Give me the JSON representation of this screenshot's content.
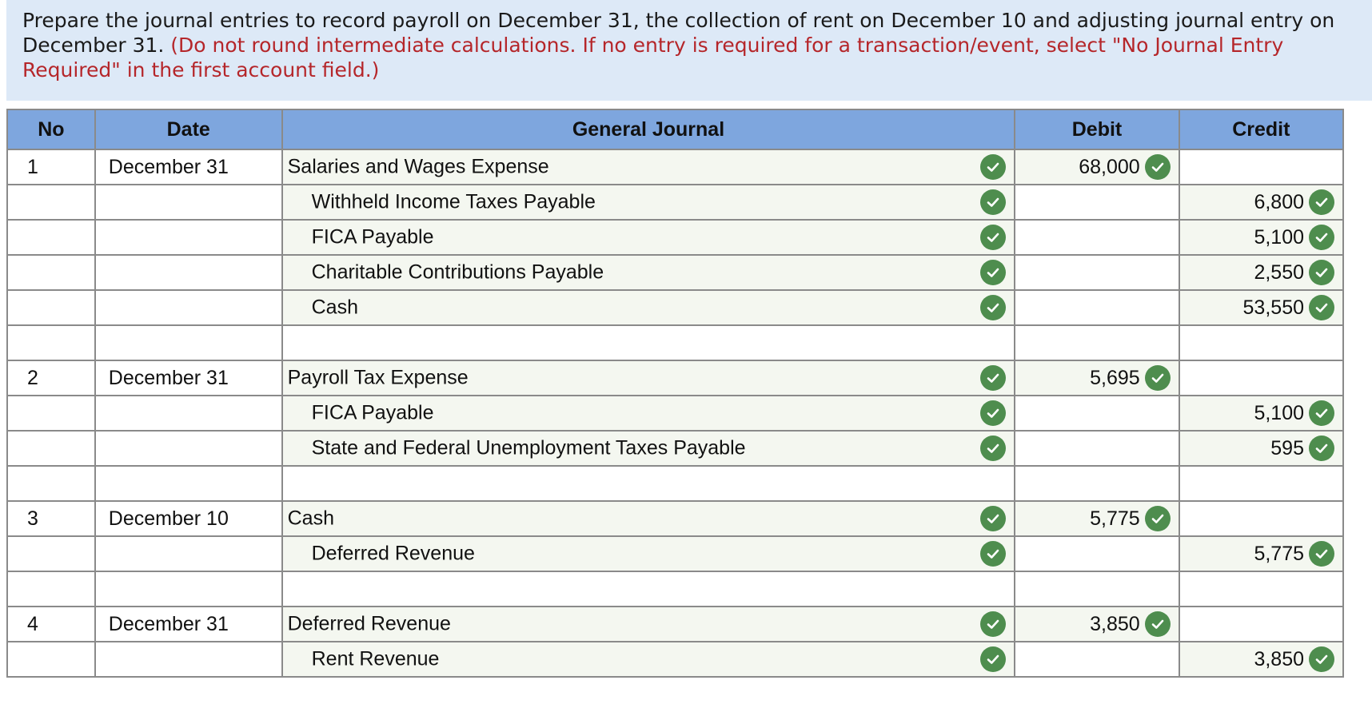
{
  "instructions": {
    "main": "Prepare the journal entries to record payroll on December 31, the collection of rent on December 10 and adjusting journal entry on December 31.",
    "note": "(Do not round intermediate calculations. If no entry is required for a transaction/event, select \"No Journal Entry Required\" in the first account field.)"
  },
  "table": {
    "headers": {
      "no": "No",
      "date": "Date",
      "journal": "General Journal",
      "debit": "Debit",
      "credit": "Credit"
    },
    "rows": [
      {
        "no": "1",
        "date": "December 31",
        "account": "Salaries and Wages Expense",
        "debit": "68,000",
        "credit": ""
      },
      {
        "no": "",
        "date": "",
        "account": "Withheld Income Taxes Payable",
        "debit": "",
        "credit": "6,800"
      },
      {
        "no": "",
        "date": "",
        "account": "FICA Payable",
        "debit": "",
        "credit": "5,100"
      },
      {
        "no": "",
        "date": "",
        "account": "Charitable Contributions Payable",
        "debit": "",
        "credit": "2,550"
      },
      {
        "no": "",
        "date": "",
        "account": "Cash",
        "debit": "",
        "credit": "53,550"
      },
      {
        "no": "",
        "date": "",
        "account": "",
        "debit": "",
        "credit": ""
      },
      {
        "no": "2",
        "date": "December 31",
        "account": "Payroll Tax Expense",
        "debit": "5,695",
        "credit": ""
      },
      {
        "no": "",
        "date": "",
        "account": "FICA Payable",
        "debit": "",
        "credit": "5,100"
      },
      {
        "no": "",
        "date": "",
        "account": "State and Federal Unemployment Taxes Payable",
        "debit": "",
        "credit": "595"
      },
      {
        "no": "",
        "date": "",
        "account": "",
        "debit": "",
        "credit": ""
      },
      {
        "no": "3",
        "date": "December 10",
        "account": "Cash",
        "debit": "5,775",
        "credit": ""
      },
      {
        "no": "",
        "date": "",
        "account": "Deferred Revenue",
        "debit": "",
        "credit": "5,775"
      },
      {
        "no": "",
        "date": "",
        "account": "",
        "debit": "",
        "credit": ""
      },
      {
        "no": "4",
        "date": "December 31",
        "account": "Deferred Revenue",
        "debit": "3,850",
        "credit": ""
      },
      {
        "no": "",
        "date": "",
        "account": "Rent Revenue",
        "debit": "",
        "credit": "3,850"
      }
    ]
  },
  "icons": {
    "check": "check-circle-icon"
  },
  "colors": {
    "header_bg": "#7ea6de",
    "instructions_bg": "#dde9f7",
    "note_text": "#b5262a",
    "check_green": "#4e8d4e",
    "input_fill": "#f4f7f0"
  }
}
